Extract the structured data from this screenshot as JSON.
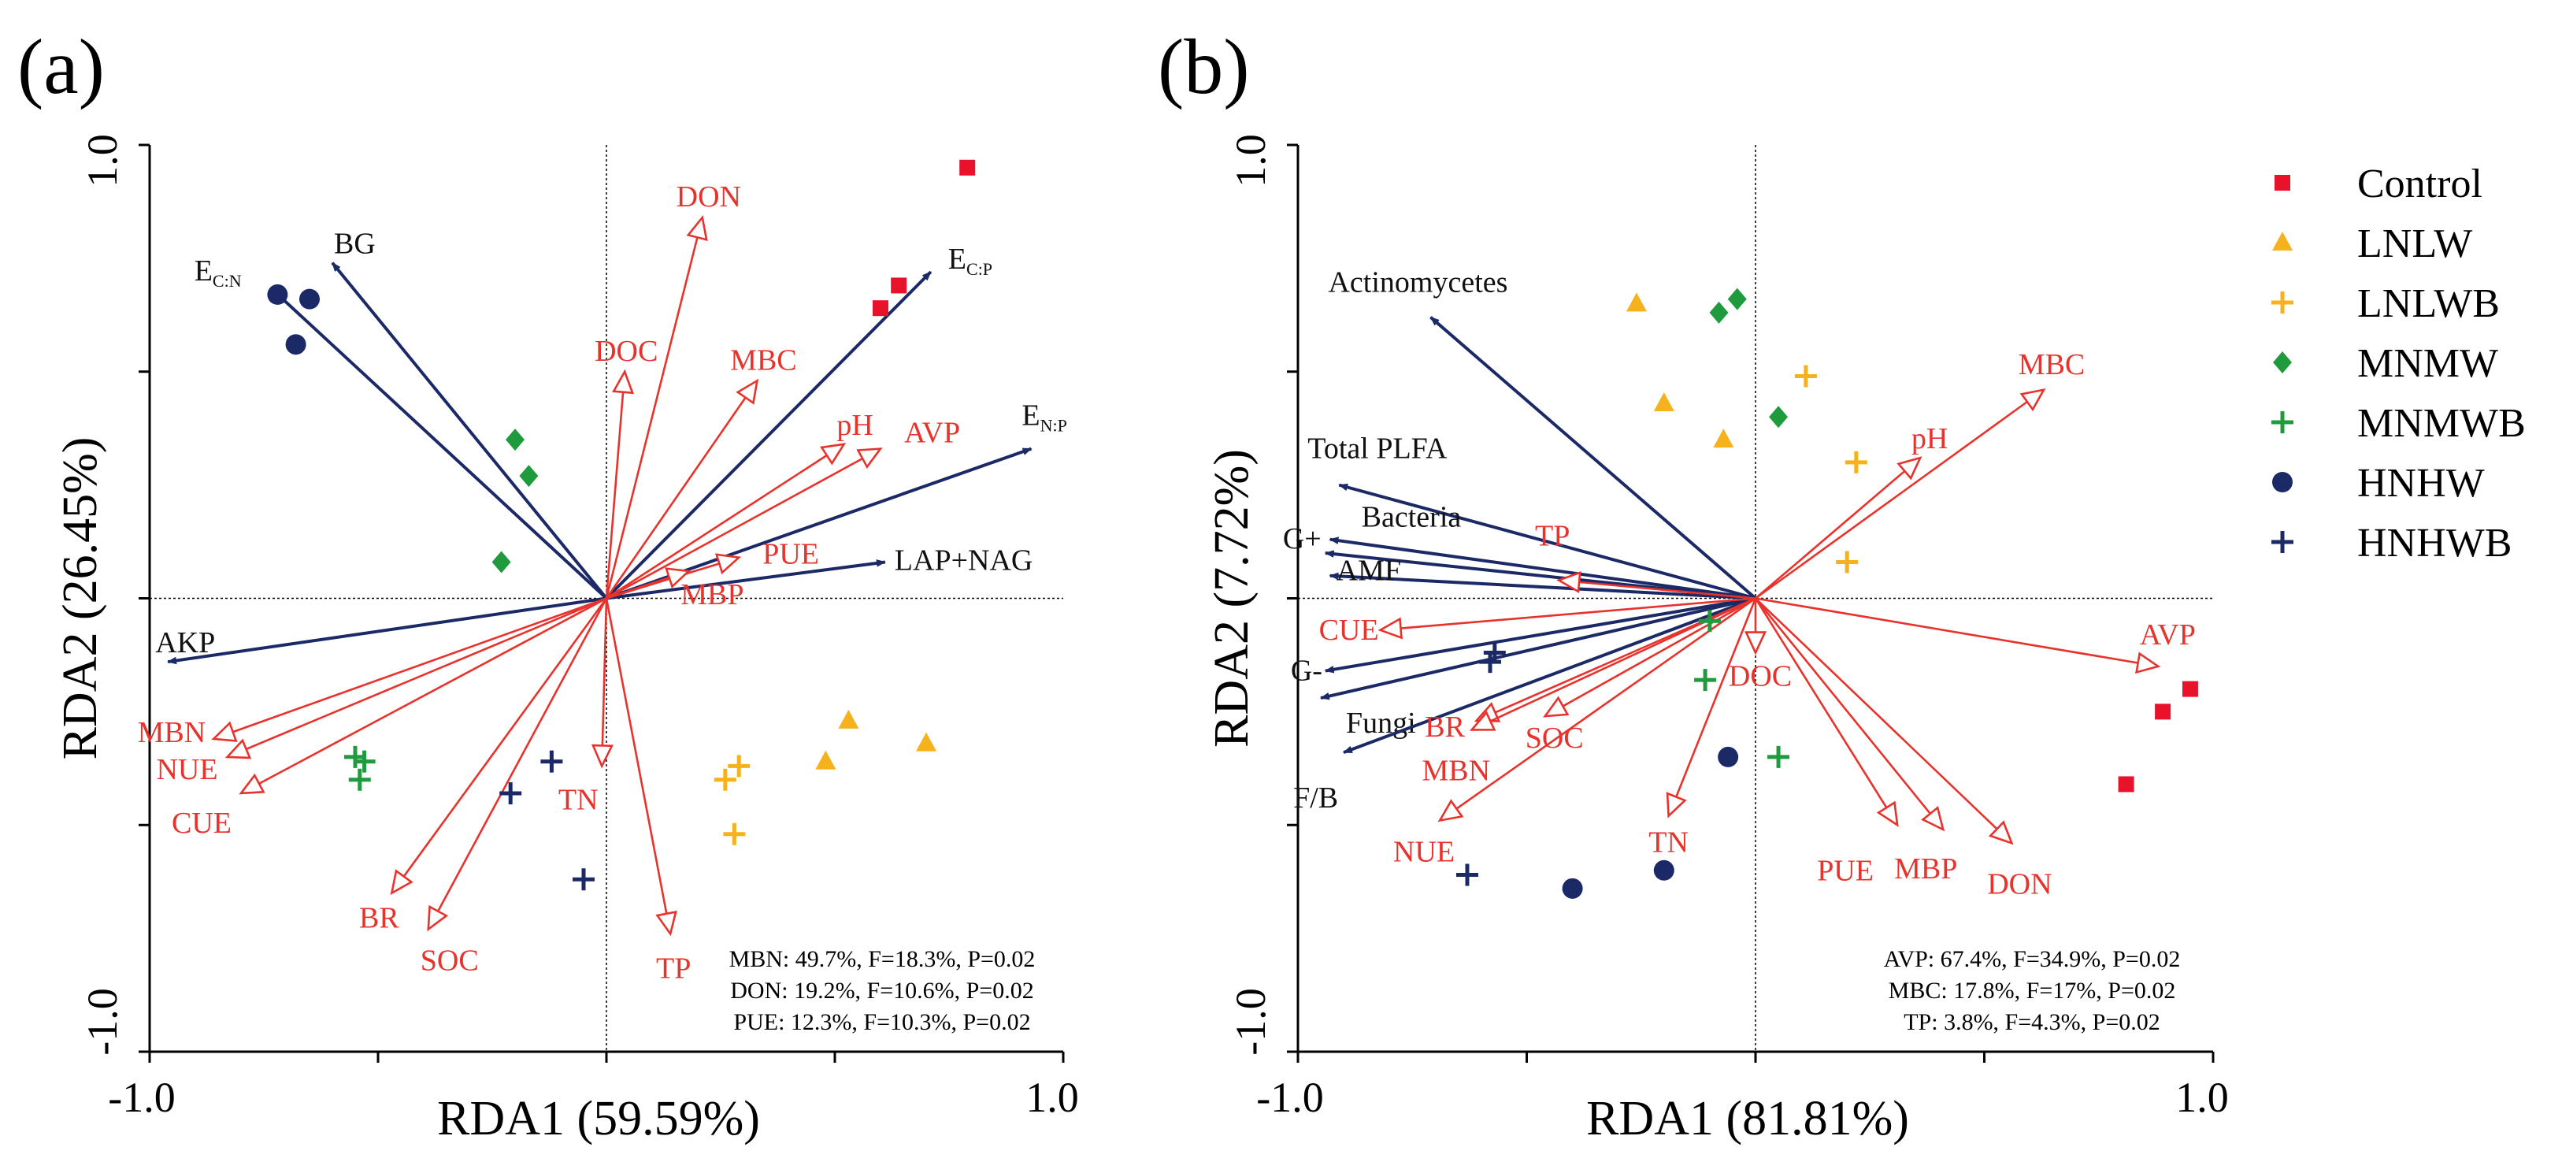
{
  "colors": {
    "env_arrow": "#e8322c",
    "micro_arrow": "#1b2a66",
    "Control": "#e8132a",
    "LNLW": "#f5b21c",
    "LNLWB": "#f5b21c",
    "MNMW": "#1f9a3c",
    "MNMWB": "#1f9a3c",
    "HNHW": "#1b2a66",
    "HNHWB": "#1b2a66"
  },
  "legend": {
    "entries": [
      {
        "name": "Control",
        "marker": "square"
      },
      {
        "name": "LNLW",
        "marker": "triangle"
      },
      {
        "name": "LNLWB",
        "marker": "plus"
      },
      {
        "name": "MNMW",
        "marker": "diamond"
      },
      {
        "name": "MNMWB",
        "marker": "plus"
      },
      {
        "name": "HNHW",
        "marker": "circle"
      },
      {
        "name": "HNHWB",
        "marker": "plus"
      }
    ]
  },
  "chart_data": [
    {
      "type": "scatter",
      "panel_label": "(a)",
      "xlabel": "RDA1 (59.59%)",
      "ylabel": "RDA2 (26.45%)",
      "xlim": [
        -1.0,
        1.0
      ],
      "ylim": [
        -1.0,
        1.0
      ],
      "xticks": [
        "-1.0",
        "1.0"
      ],
      "yticks": [
        "1.0",
        "-1.0"
      ],
      "arrows": [
        {
          "label": "BG",
          "x": -0.6,
          "y": 0.74,
          "group": "micro"
        },
        {
          "label": "E",
          "sub": "C:N",
          "x": -0.73,
          "y": 0.68,
          "group": "micro"
        },
        {
          "label": "E",
          "sub": "C:P",
          "x": 0.71,
          "y": 0.72,
          "group": "micro"
        },
        {
          "label": "E",
          "sub": "N:P",
          "x": 0.93,
          "y": 0.33,
          "group": "micro"
        },
        {
          "label": "LAP+NAG",
          "x": 0.61,
          "y": 0.08,
          "group": "micro"
        },
        {
          "label": "AKP",
          "x": -0.96,
          "y": -0.14,
          "group": "micro"
        },
        {
          "label": "DON",
          "x": 0.21,
          "y": 0.84,
          "group": "env"
        },
        {
          "label": "DOC",
          "x": 0.04,
          "y": 0.5,
          "group": "env"
        },
        {
          "label": "MBC",
          "x": 0.33,
          "y": 0.48,
          "group": "env"
        },
        {
          "label": "pH",
          "x": 0.52,
          "y": 0.34,
          "group": "env"
        },
        {
          "label": "AVP",
          "x": 0.6,
          "y": 0.33,
          "group": "env"
        },
        {
          "label": "PUE",
          "x": 0.29,
          "y": 0.09,
          "group": "env"
        },
        {
          "label": "MBP",
          "x": 0.18,
          "y": 0.06,
          "group": "env"
        },
        {
          "label": "TN",
          "x": -0.01,
          "y": -0.37,
          "group": "env"
        },
        {
          "label": "TP",
          "x": 0.14,
          "y": -0.74,
          "group": "env"
        },
        {
          "label": "SOC",
          "x": -0.39,
          "y": -0.73,
          "group": "env"
        },
        {
          "label": "BR",
          "x": -0.47,
          "y": -0.65,
          "group": "env"
        },
        {
          "label": "MBN",
          "x": -0.86,
          "y": -0.31,
          "group": "env"
        },
        {
          "label": "NUE",
          "x": -0.83,
          "y": -0.35,
          "group": "env"
        },
        {
          "label": "CUE",
          "x": -0.8,
          "y": -0.43,
          "group": "env"
        }
      ],
      "points": [
        {
          "group": "Control",
          "x": 0.79,
          "y": 0.95
        },
        {
          "group": "Control",
          "x": 0.64,
          "y": 0.69
        },
        {
          "group": "Control",
          "x": 0.6,
          "y": 0.64
        },
        {
          "group": "LNLW",
          "x": 0.53,
          "y": -0.27
        },
        {
          "group": "LNLW",
          "x": 0.48,
          "y": -0.36
        },
        {
          "group": "LNLW",
          "x": 0.7,
          "y": -0.32
        },
        {
          "group": "LNLWB",
          "x": 0.29,
          "y": -0.37
        },
        {
          "group": "LNLWB",
          "x": 0.26,
          "y": -0.4
        },
        {
          "group": "LNLWB",
          "x": 0.28,
          "y": -0.52
        },
        {
          "group": "MNMW",
          "x": -0.2,
          "y": 0.35
        },
        {
          "group": "MNMW",
          "x": -0.17,
          "y": 0.27
        },
        {
          "group": "MNMW",
          "x": -0.23,
          "y": 0.08
        },
        {
          "group": "MNMWB",
          "x": -0.55,
          "y": -0.35
        },
        {
          "group": "MNMWB",
          "x": -0.53,
          "y": -0.36
        },
        {
          "group": "MNMWB",
          "x": -0.54,
          "y": -0.4
        },
        {
          "group": "HNHW",
          "x": -0.72,
          "y": 0.67
        },
        {
          "group": "HNHW",
          "x": -0.65,
          "y": 0.66
        },
        {
          "group": "HNHW",
          "x": -0.68,
          "y": 0.56
        },
        {
          "group": "HNHWB",
          "x": -0.12,
          "y": -0.36
        },
        {
          "group": "HNHWB",
          "x": -0.21,
          "y": -0.43
        },
        {
          "group": "HNHWB",
          "x": -0.05,
          "y": -0.62
        }
      ],
      "stats": [
        "MBN: 49.7%, F=18.3%, P=0.02",
        "DON: 19.2%, F=10.6%, P=0.02",
        "PUE: 12.3%, F=10.3%, P=0.02"
      ]
    },
    {
      "type": "scatter",
      "panel_label": "(b)",
      "xlabel": "RDA1 (81.81%)",
      "ylabel": "RDA2 (7.72%)",
      "xlim": [
        -1.0,
        1.0
      ],
      "ylim": [
        -1.0,
        1.0
      ],
      "xticks": [
        "-1.0",
        "1.0"
      ],
      "yticks": [
        "1.0",
        "-1.0"
      ],
      "arrows": [
        {
          "label": "Actinomycetes",
          "x": -0.71,
          "y": 0.62,
          "group": "micro"
        },
        {
          "label": "Total PLFA",
          "x": -0.91,
          "y": 0.25,
          "group": "micro"
        },
        {
          "label": "Bacteria",
          "x": -0.93,
          "y": 0.13,
          "group": "micro"
        },
        {
          "label": "G+",
          "x": -0.94,
          "y": 0.1,
          "group": "micro"
        },
        {
          "label": "AMF",
          "x": -0.93,
          "y": 0.05,
          "group": "micro"
        },
        {
          "label": "G-",
          "x": -0.94,
          "y": -0.16,
          "group": "micro"
        },
        {
          "label": "Fungi",
          "x": -0.95,
          "y": -0.22,
          "group": "micro"
        },
        {
          "label": "F/B",
          "x": -0.9,
          "y": -0.34,
          "group": "micro"
        },
        {
          "label": "MBC",
          "x": 0.63,
          "y": 0.46,
          "group": "env"
        },
        {
          "label": "pH",
          "x": 0.36,
          "y": 0.31,
          "group": "env"
        },
        {
          "label": "TP",
          "x": -0.43,
          "y": 0.04,
          "group": "env"
        },
        {
          "label": "AVP",
          "x": 0.88,
          "y": -0.15,
          "group": "env"
        },
        {
          "label": "DOC",
          "x": 0.0,
          "y": -0.12,
          "group": "env"
        },
        {
          "label": "CUE",
          "x": -0.82,
          "y": -0.07,
          "group": "env"
        },
        {
          "label": "BR",
          "x": -0.61,
          "y": -0.27,
          "group": "env"
        },
        {
          "label": "SOC",
          "x": -0.46,
          "y": -0.26,
          "group": "env"
        },
        {
          "label": "MBN",
          "x": -0.62,
          "y": -0.29,
          "group": "env"
        },
        {
          "label": "NUE",
          "x": -0.69,
          "y": -0.49,
          "group": "env"
        },
        {
          "label": "TN",
          "x": -0.19,
          "y": -0.48,
          "group": "env"
        },
        {
          "label": "PUE",
          "x": 0.31,
          "y": -0.5,
          "group": "env"
        },
        {
          "label": "MBP",
          "x": 0.41,
          "y": -0.51,
          "group": "env"
        },
        {
          "label": "DON",
          "x": 0.56,
          "y": -0.54,
          "group": "env"
        }
      ],
      "points": [
        {
          "group": "Control",
          "x": 0.95,
          "y": -0.2
        },
        {
          "group": "Control",
          "x": 0.89,
          "y": -0.25
        },
        {
          "group": "Control",
          "x": 0.81,
          "y": -0.41
        },
        {
          "group": "LNLW",
          "x": -0.26,
          "y": 0.65
        },
        {
          "group": "LNLW",
          "x": -0.2,
          "y": 0.43
        },
        {
          "group": "LNLW",
          "x": -0.07,
          "y": 0.35
        },
        {
          "group": "LNLWB",
          "x": 0.11,
          "y": 0.49
        },
        {
          "group": "LNLWB",
          "x": 0.22,
          "y": 0.3
        },
        {
          "group": "LNLWB",
          "x": 0.2,
          "y": 0.08
        },
        {
          "group": "MNMW",
          "x": -0.08,
          "y": 0.63
        },
        {
          "group": "MNMW",
          "x": -0.04,
          "y": 0.66
        },
        {
          "group": "MNMW",
          "x": 0.05,
          "y": 0.4
        },
        {
          "group": "MNMWB",
          "x": -0.1,
          "y": -0.05
        },
        {
          "group": "MNMWB",
          "x": -0.11,
          "y": -0.18
        },
        {
          "group": "MNMWB",
          "x": 0.05,
          "y": -0.35
        },
        {
          "group": "HNHW",
          "x": -0.06,
          "y": -0.35
        },
        {
          "group": "HNHW",
          "x": -0.2,
          "y": -0.6
        },
        {
          "group": "HNHW",
          "x": -0.4,
          "y": -0.64
        },
        {
          "group": "HNHWB",
          "x": -0.57,
          "y": -0.12
        },
        {
          "group": "HNHWB",
          "x": -0.58,
          "y": -0.14
        },
        {
          "group": "HNHWB",
          "x": -0.63,
          "y": -0.61
        }
      ],
      "stats": [
        "AVP: 67.4%, F=34.9%, P=0.02",
        "MBC: 17.8%, F=17%, P=0.02",
        "TP: 3.8%, F=4.3%, P=0.02"
      ]
    }
  ]
}
